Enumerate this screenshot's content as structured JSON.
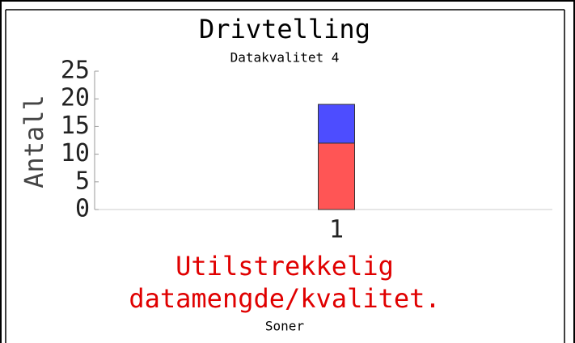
{
  "chart_data": {
    "type": "stacked_bar",
    "title": "Drivtelling",
    "subtitle": "Datakvalitet 4",
    "y_label": "Antall",
    "x_label": "Soner",
    "annotation": [
      "Utilstrekkelig",
      "datamengde/kvalitet."
    ],
    "annotation_color": "#e00000",
    "categories": [
      "1"
    ],
    "series": [
      {
        "color": "#ff5555",
        "values": [
          12
        ]
      },
      {
        "color": "#4d4dff",
        "values": [
          7
        ]
      }
    ],
    "ylim": [
      0,
      25
    ],
    "yticks": [
      0,
      5,
      10,
      15,
      20,
      25
    ]
  }
}
